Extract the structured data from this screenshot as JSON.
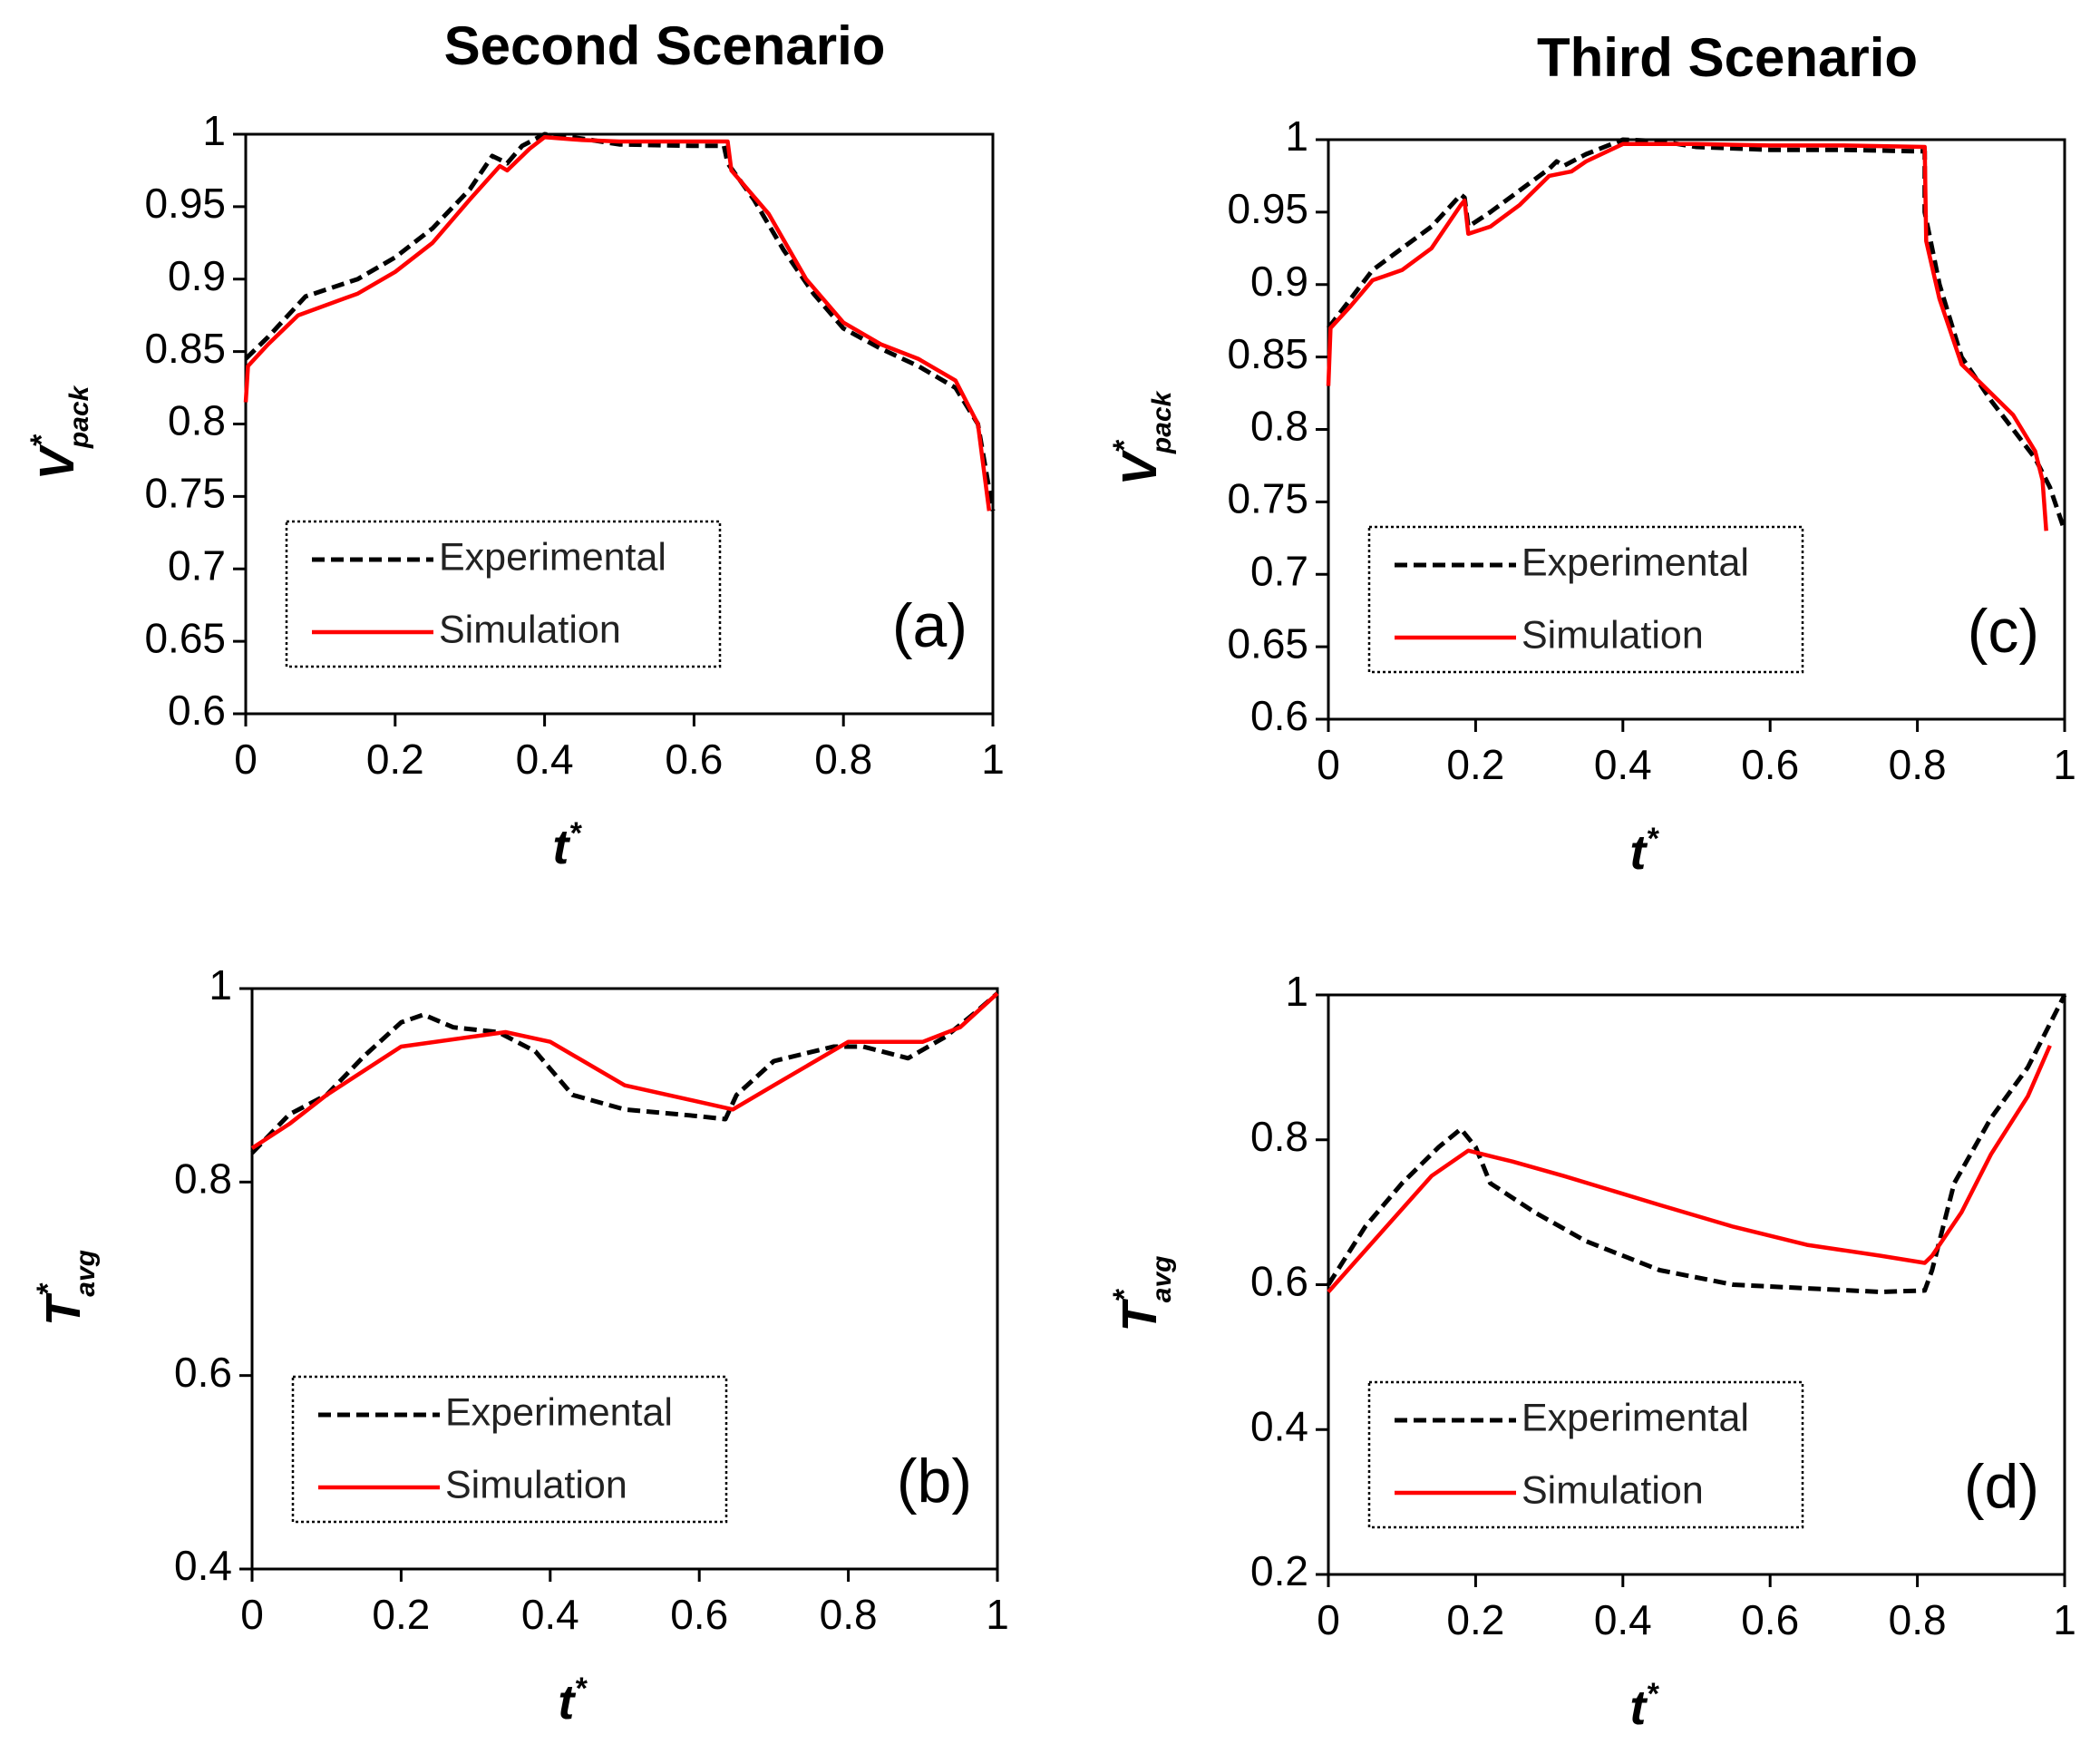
{
  "chart_data": [
    {
      "id": "a",
      "type": "line",
      "title": "Second Scenario",
      "panel_label": "(a)",
      "xlabel": {
        "main": "t",
        "sup": "*"
      },
      "ylabel": {
        "main": "V",
        "sup": "*",
        "sub": "pack"
      },
      "xlim": [
        0,
        1
      ],
      "ylim": [
        0.6,
        1
      ],
      "x_ticks": [
        0,
        0.2,
        0.4,
        0.6,
        0.8,
        1
      ],
      "x_tick_labels": [
        "0",
        "0.2",
        "0.4",
        "0.6",
        "0.8",
        "1"
      ],
      "y_ticks": [
        0.6,
        0.65,
        0.7,
        0.75,
        0.8,
        0.85,
        0.9,
        0.95,
        1
      ],
      "y_tick_labels": [
        "0.6",
        "0.65",
        "0.7",
        "0.75",
        "0.8",
        "0.85",
        "0.9",
        "0.95",
        "1"
      ],
      "legend": {
        "position": "bottom-left",
        "entries": [
          "Experimental",
          "Simulation"
        ]
      },
      "series": [
        {
          "name": "Experimental",
          "color": "#000000",
          "style": "dashed",
          "points": [
            [
              0,
              0.845
            ],
            [
              0.03,
              0.86
            ],
            [
              0.08,
              0.888
            ],
            [
              0.15,
              0.9
            ],
            [
              0.2,
              0.915
            ],
            [
              0.25,
              0.935
            ],
            [
              0.3,
              0.962
            ],
            [
              0.33,
              0.985
            ],
            [
              0.35,
              0.98
            ],
            [
              0.37,
              0.992
            ],
            [
              0.4,
              1.0
            ],
            [
              0.45,
              0.997
            ],
            [
              0.5,
              0.993
            ],
            [
              0.6,
              0.992
            ],
            [
              0.64,
              0.992
            ],
            [
              0.645,
              0.98
            ],
            [
              0.68,
              0.955
            ],
            [
              0.72,
              0.92
            ],
            [
              0.76,
              0.89
            ],
            [
              0.8,
              0.866
            ],
            [
              0.85,
              0.852
            ],
            [
              0.9,
              0.84
            ],
            [
              0.95,
              0.825
            ],
            [
              0.98,
              0.8
            ],
            [
              1.0,
              0.74
            ]
          ]
        },
        {
          "name": "Simulation",
          "color": "#ff0000",
          "style": "solid",
          "points": [
            [
              0,
              0.815
            ],
            [
              0.003,
              0.84
            ],
            [
              0.03,
              0.855
            ],
            [
              0.07,
              0.875
            ],
            [
              0.15,
              0.89
            ],
            [
              0.2,
              0.905
            ],
            [
              0.25,
              0.925
            ],
            [
              0.3,
              0.955
            ],
            [
              0.34,
              0.978
            ],
            [
              0.35,
              0.975
            ],
            [
              0.38,
              0.99
            ],
            [
              0.4,
              0.998
            ],
            [
              0.45,
              0.996
            ],
            [
              0.5,
              0.995
            ],
            [
              0.645,
              0.995
            ],
            [
              0.65,
              0.975
            ],
            [
              0.7,
              0.945
            ],
            [
              0.75,
              0.9
            ],
            [
              0.8,
              0.87
            ],
            [
              0.85,
              0.855
            ],
            [
              0.9,
              0.845
            ],
            [
              0.95,
              0.83
            ],
            [
              0.98,
              0.8
            ],
            [
              0.995,
              0.74
            ]
          ]
        }
      ]
    },
    {
      "id": "b",
      "type": "line",
      "panel_label": "(b)",
      "xlabel": {
        "main": "t",
        "sup": "*"
      },
      "ylabel": {
        "main": "T",
        "sup": "*",
        "sub": "avg"
      },
      "xlim": [
        0,
        1
      ],
      "ylim": [
        0.4,
        1
      ],
      "x_ticks": [
        0,
        0.2,
        0.4,
        0.6,
        0.8,
        1
      ],
      "x_tick_labels": [
        "0",
        "0.2",
        "0.4",
        "0.6",
        "0.8",
        "1"
      ],
      "y_ticks": [
        0.4,
        0.6,
        0.8,
        1
      ],
      "y_tick_labels": [
        "0.4",
        "0.6",
        "0.8",
        "1"
      ],
      "legend": {
        "position": "bottom-left",
        "entries": [
          "Experimental",
          "Simulation"
        ]
      },
      "series": [
        {
          "name": "Experimental",
          "color": "#000000",
          "style": "dashed",
          "points": [
            [
              0,
              0.83
            ],
            [
              0.05,
              0.87
            ],
            [
              0.1,
              0.89
            ],
            [
              0.15,
              0.93
            ],
            [
              0.2,
              0.965
            ],
            [
              0.23,
              0.973
            ],
            [
              0.27,
              0.96
            ],
            [
              0.33,
              0.955
            ],
            [
              0.38,
              0.935
            ],
            [
              0.43,
              0.89
            ],
            [
              0.5,
              0.875
            ],
            [
              0.6,
              0.868
            ],
            [
              0.635,
              0.865
            ],
            [
              0.65,
              0.89
            ],
            [
              0.7,
              0.925
            ],
            [
              0.78,
              0.94
            ],
            [
              0.82,
              0.94
            ],
            [
              0.88,
              0.928
            ],
            [
              0.93,
              0.95
            ],
            [
              0.97,
              0.975
            ],
            [
              1.0,
              0.995
            ]
          ]
        },
        {
          "name": "Simulation",
          "color": "#ff0000",
          "style": "solid",
          "points": [
            [
              0,
              0.835
            ],
            [
              0.05,
              0.86
            ],
            [
              0.1,
              0.89
            ],
            [
              0.2,
              0.94
            ],
            [
              0.34,
              0.955
            ],
            [
              0.4,
              0.945
            ],
            [
              0.5,
              0.9
            ],
            [
              0.645,
              0.875
            ],
            [
              0.7,
              0.9
            ],
            [
              0.8,
              0.945
            ],
            [
              0.9,
              0.945
            ],
            [
              0.95,
              0.96
            ],
            [
              1.0,
              0.995
            ]
          ]
        }
      ]
    },
    {
      "id": "c",
      "type": "line",
      "title": "Third Scenario",
      "panel_label": "(c)",
      "xlabel": {
        "main": "t",
        "sup": "*"
      },
      "ylabel": {
        "main": "V",
        "sup": "*",
        "sub": "pack"
      },
      "xlim": [
        0,
        1
      ],
      "ylim": [
        0.6,
        1
      ],
      "x_ticks": [
        0,
        0.2,
        0.4,
        0.6,
        0.8,
        1
      ],
      "x_tick_labels": [
        "0",
        "0.2",
        "0.4",
        "0.6",
        "0.8",
        "1"
      ],
      "y_ticks": [
        0.6,
        0.65,
        0.7,
        0.75,
        0.8,
        0.85,
        0.9,
        0.95,
        1
      ],
      "y_tick_labels": [
        "0.6",
        "0.65",
        "0.7",
        "0.75",
        "0.8",
        "0.85",
        "0.9",
        "0.95",
        "1"
      ],
      "legend": {
        "position": "bottom-left",
        "entries": [
          "Experimental",
          "Simulation"
        ]
      },
      "series": [
        {
          "name": "Experimental",
          "color": "#000000",
          "style": "dashed",
          "points": [
            [
              0,
              0.87
            ],
            [
              0.03,
              0.89
            ],
            [
              0.06,
              0.91
            ],
            [
              0.1,
              0.925
            ],
            [
              0.14,
              0.94
            ],
            [
              0.18,
              0.962
            ],
            [
              0.185,
              0.96
            ],
            [
              0.19,
              0.94
            ],
            [
              0.22,
              0.95
            ],
            [
              0.26,
              0.965
            ],
            [
              0.3,
              0.98
            ],
            [
              0.31,
              0.985
            ],
            [
              0.32,
              0.982
            ],
            [
              0.35,
              0.99
            ],
            [
              0.4,
              1.0
            ],
            [
              0.45,
              0.999
            ],
            [
              0.5,
              0.995
            ],
            [
              0.6,
              0.993
            ],
            [
              0.7,
              0.993
            ],
            [
              0.8,
              0.992
            ],
            [
              0.81,
              0.992
            ],
            [
              0.81,
              0.95
            ],
            [
              0.83,
              0.9
            ],
            [
              0.86,
              0.85
            ],
            [
              0.9,
              0.82
            ],
            [
              0.93,
              0.8
            ],
            [
              0.96,
              0.78
            ],
            [
              0.98,
              0.76
            ],
            [
              1.0,
              0.73
            ]
          ]
        },
        {
          "name": "Simulation",
          "color": "#ff0000",
          "style": "solid",
          "points": [
            [
              0,
              0.83
            ],
            [
              0.003,
              0.87
            ],
            [
              0.03,
              0.885
            ],
            [
              0.06,
              0.903
            ],
            [
              0.1,
              0.91
            ],
            [
              0.14,
              0.925
            ],
            [
              0.18,
              0.955
            ],
            [
              0.185,
              0.958
            ],
            [
              0.19,
              0.935
            ],
            [
              0.22,
              0.94
            ],
            [
              0.26,
              0.955
            ],
            [
              0.3,
              0.975
            ],
            [
              0.33,
              0.978
            ],
            [
              0.35,
              0.985
            ],
            [
              0.4,
              0.997
            ],
            [
              0.45,
              0.997
            ],
            [
              0.5,
              0.997
            ],
            [
              0.6,
              0.996
            ],
            [
              0.7,
              0.996
            ],
            [
              0.81,
              0.995
            ],
            [
              0.812,
              0.93
            ],
            [
              0.83,
              0.89
            ],
            [
              0.86,
              0.845
            ],
            [
              0.9,
              0.825
            ],
            [
              0.93,
              0.81
            ],
            [
              0.96,
              0.785
            ],
            [
              0.97,
              0.765
            ],
            [
              0.975,
              0.73
            ]
          ]
        }
      ]
    },
    {
      "id": "d",
      "type": "line",
      "panel_label": "(d)",
      "xlabel": {
        "main": "t",
        "sup": "*"
      },
      "ylabel": {
        "main": "T",
        "sup": "*",
        "sub": "avg"
      },
      "xlim": [
        0,
        1
      ],
      "ylim": [
        0.2,
        1
      ],
      "x_ticks": [
        0,
        0.2,
        0.4,
        0.6,
        0.8,
        1
      ],
      "x_tick_labels": [
        "0",
        "0.2",
        "0.4",
        "0.6",
        "0.8",
        "1"
      ],
      "y_ticks": [
        0.2,
        0.4,
        0.6,
        0.8,
        1
      ],
      "y_tick_labels": [
        "0.2",
        "0.4",
        "0.6",
        "0.8",
        "1"
      ],
      "legend": {
        "position": "bottom-left",
        "entries": [
          "Experimental",
          "Simulation"
        ]
      },
      "series": [
        {
          "name": "Experimental",
          "color": "#000000",
          "style": "dashed",
          "points": [
            [
              0,
              0.6
            ],
            [
              0.05,
              0.68
            ],
            [
              0.1,
              0.74
            ],
            [
              0.15,
              0.79
            ],
            [
              0.18,
              0.815
            ],
            [
              0.2,
              0.79
            ],
            [
              0.22,
              0.74
            ],
            [
              0.28,
              0.7
            ],
            [
              0.35,
              0.66
            ],
            [
              0.45,
              0.62
            ],
            [
              0.55,
              0.6
            ],
            [
              0.65,
              0.595
            ],
            [
              0.75,
              0.59
            ],
            [
              0.81,
              0.592
            ],
            [
              0.82,
              0.62
            ],
            [
              0.85,
              0.74
            ],
            [
              0.9,
              0.83
            ],
            [
              0.95,
              0.9
            ],
            [
              1.0,
              1.0
            ]
          ]
        },
        {
          "name": "Simulation",
          "color": "#ff0000",
          "style": "solid",
          "points": [
            [
              0,
              0.59
            ],
            [
              0.07,
              0.67
            ],
            [
              0.14,
              0.75
            ],
            [
              0.19,
              0.785
            ],
            [
              0.25,
              0.77
            ],
            [
              0.32,
              0.75
            ],
            [
              0.45,
              0.71
            ],
            [
              0.55,
              0.68
            ],
            [
              0.65,
              0.655
            ],
            [
              0.75,
              0.64
            ],
            [
              0.81,
              0.63
            ],
            [
              0.82,
              0.64
            ],
            [
              0.86,
              0.7
            ],
            [
              0.9,
              0.78
            ],
            [
              0.95,
              0.86
            ],
            [
              0.98,
              0.93
            ]
          ]
        }
      ]
    }
  ]
}
